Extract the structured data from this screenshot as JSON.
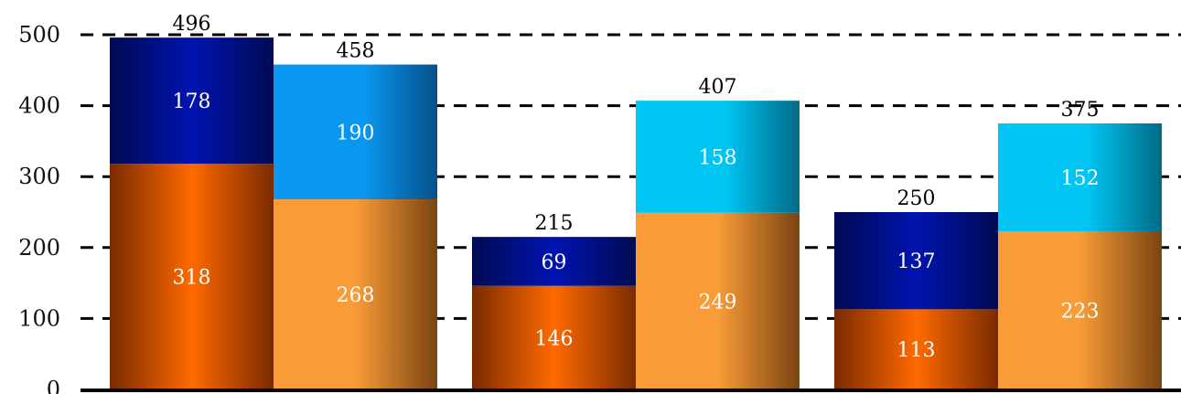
{
  "chart_data": {
    "type": "bar",
    "stacked": true,
    "groups": 3,
    "bars": [
      {
        "bottom": 318,
        "top": 178,
        "total": 496,
        "palette": "dark"
      },
      {
        "bottom": 268,
        "top": 190,
        "total": 458,
        "palette": "light"
      },
      {
        "bottom": 146,
        "top": 69,
        "total": 215,
        "palette": "dark"
      },
      {
        "bottom": 249,
        "top": 158,
        "total": 407,
        "palette": "light"
      },
      {
        "bottom": 113,
        "top": 137,
        "total": 250,
        "palette": "dark"
      },
      {
        "bottom": 223,
        "top": 152,
        "total": 375,
        "palette": "light"
      }
    ],
    "yticks": [
      "0",
      "100",
      "200",
      "300",
      "400",
      "500"
    ],
    "ylim": [
      0,
      500
    ],
    "grid": "dashed horizontal",
    "legend": "none",
    "colors": {
      "dark_bottom": "#ff6600",
      "dark_top": "#00129c",
      "light_bottom": "#f99c38",
      "light_top_first": "#0a97ef",
      "light_top": "#00c5f2"
    }
  }
}
